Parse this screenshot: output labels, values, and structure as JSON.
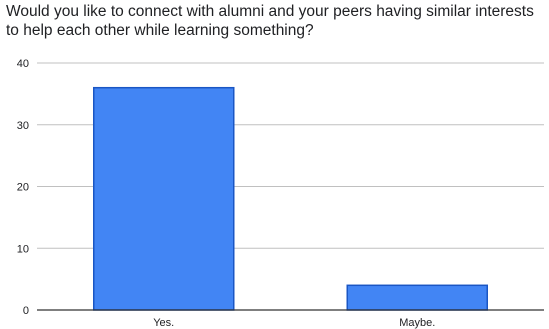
{
  "chart_data": {
    "type": "bar",
    "title": "Would you like to connect with alumni and your peers having similar interests to help each other while learning something?",
    "categories": [
      "Yes.",
      "Maybe."
    ],
    "values": [
      36,
      4
    ],
    "xlabel": "",
    "ylabel": "",
    "ylim": [
      0,
      40
    ],
    "yticks": [
      0,
      10,
      20,
      30,
      40
    ],
    "grid": true,
    "legend": "none",
    "bar_color": "#4285f4",
    "bar_stroke": "#1a56c4",
    "grid_color": "#c0c0c0"
  }
}
